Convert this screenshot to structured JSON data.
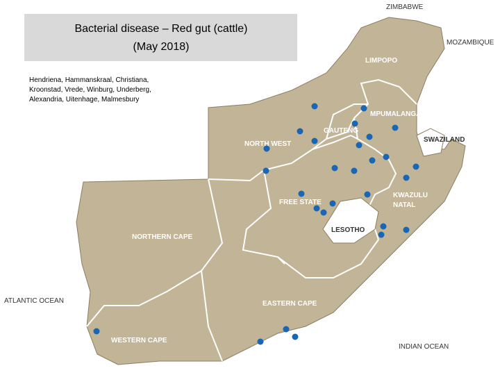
{
  "header": {
    "title": [
      "Bacterial disease – Red gut (cattle)",
      "(May 2018)"
    ],
    "towns": [
      "Hendriena, Hammanskraal, Christiana,",
      "Kroonstad, Vrede, Winburg, Underberg,",
      "Alexandria, Uitenhage, Malmesbury"
    ]
  },
  "map": {
    "countries": {
      "zimbabwe": "ZIMBABWE",
      "mozambique": "MOZAMBIQUE",
      "swaziland": "SWAZILAND",
      "lesotho": "LESOTHO"
    },
    "oceans": {
      "atlantic": "ATLANTIC OCEAN",
      "indian": "INDIAN OCEAN"
    },
    "provinces": {
      "limpopo": "LIMPOPO",
      "mpumalanga": "MPUMALANGA",
      "gauteng": "GAUTENG",
      "north_west": "NORTH WEST",
      "free_state": "FREE STATE",
      "kwazulu_natal": [
        "KWAZULU",
        "NATAL"
      ],
      "northern_cape": "NORTHERN CAPE",
      "eastern_cape": "EASTERN CAPE",
      "western_cape": "WESTERN CAPE"
    }
  }
}
